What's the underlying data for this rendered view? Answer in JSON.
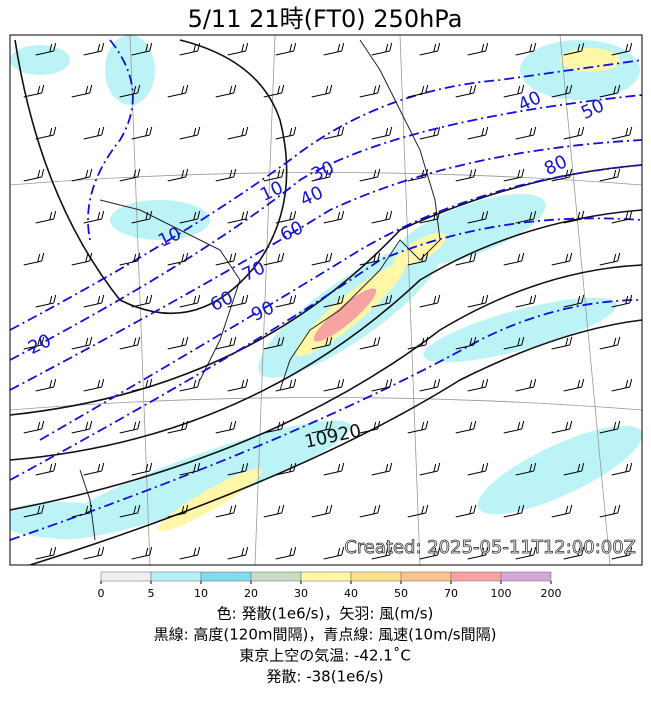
{
  "title": "5/11  21時(FT0)     250hPa",
  "created": "Created: 2025-05-11T12:00:00Z",
  "contour_labels": [
    "40",
    "50",
    "80",
    "30",
    "40",
    "10",
    "10",
    "60",
    "70",
    "60",
    "90",
    "20"
  ],
  "height_labels": [
    "10920"
  ],
  "colorbar": {
    "ticks": [
      0,
      5,
      10,
      20,
      30,
      40,
      50,
      70,
      100,
      200
    ],
    "colors": [
      "#f0f0f0",
      "#b5f2f7",
      "#7fdcef",
      "#c8dcc4",
      "#fff7a8",
      "#ffe08a",
      "#fcc38f",
      "#f7a3a3",
      "#d4a8d8"
    ]
  },
  "caption": [
    "色: 発散(1e6/s)，矢羽: 風(m/s)",
    "黒線: 高度(120m間隔)，青点線: 風速(10m/s間隔)",
    "東京上空の気温: -42.1˚C",
    "発散: -38(1e6/s)"
  ]
}
